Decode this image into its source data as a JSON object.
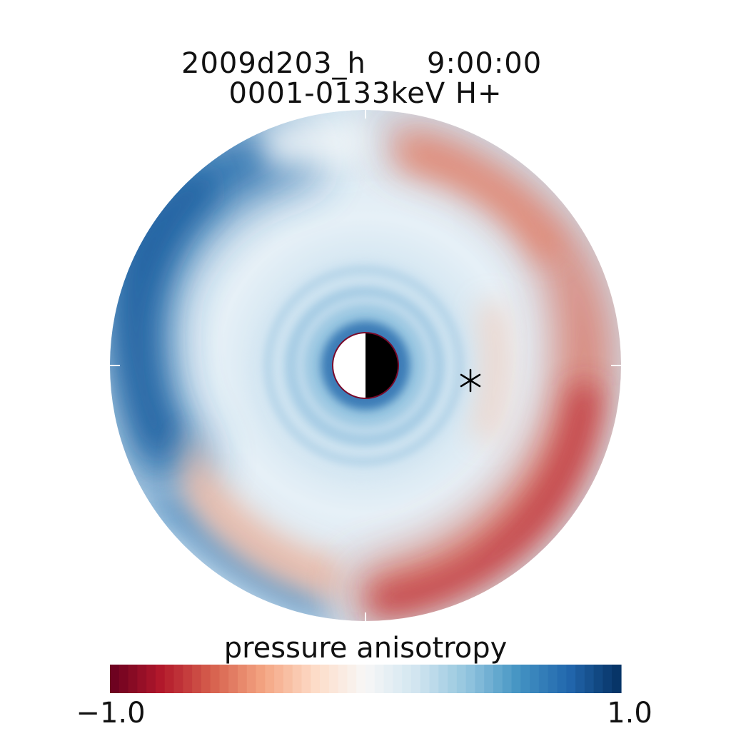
{
  "title_line1": "2009d203_h",
  "title_time": "9:00:00",
  "title_line2": "0001-0133keV H+",
  "colorbar": {
    "label": "pressure anisotropy",
    "min_label": "−1.0",
    "max_label": "1.0",
    "min": -1.0,
    "max": 1.0,
    "colors": [
      "#67001f",
      "#b2182b",
      "#d6604d",
      "#f4a582",
      "#fddbc7",
      "#f7f7f7",
      "#d1e5f0",
      "#92c5de",
      "#4393c3",
      "#2166ac",
      "#053061"
    ]
  },
  "colors": {
    "earth_day": "#ffffff",
    "earth_night": "#000000",
    "earth_outline": "#7a0a2a",
    "marker": "#000000"
  },
  "marker_icon": "asterisk-icon"
}
